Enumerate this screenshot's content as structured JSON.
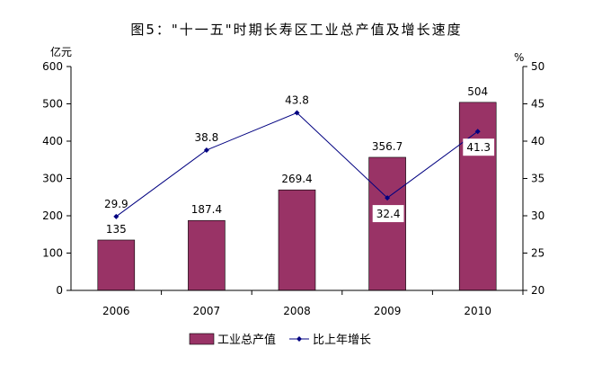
{
  "chart_data": {
    "type": "bar",
    "title": "图5：\"十一五\"时期长寿区工业总产值及增长速度",
    "categories": [
      "2006",
      "2007",
      "2008",
      "2009",
      "2010"
    ],
    "series": [
      {
        "name": "工业总产值",
        "type": "bar",
        "axis": "left",
        "values": [
          135,
          187.4,
          269.4,
          356.7,
          504
        ],
        "labels": [
          "135",
          "187.4",
          "269.4",
          "356.7",
          "504"
        ],
        "color": "#993366"
      },
      {
        "name": "比上年增长",
        "type": "line",
        "axis": "right",
        "values": [
          29.9,
          38.8,
          43.8,
          32.4,
          41.3
        ],
        "labels": [
          "29.9",
          "38.8",
          "43.8",
          "32.4",
          "41.3"
        ],
        "color": "#000080"
      }
    ],
    "left_axis": {
      "unit": "亿元",
      "ylim": [
        0,
        600
      ],
      "ticks": [
        "0",
        "100",
        "200",
        "300",
        "400",
        "500",
        "600"
      ]
    },
    "right_axis": {
      "unit": "%",
      "ylim": [
        20,
        50
      ],
      "ticks": [
        "20",
        "25",
        "30",
        "35",
        "40",
        "45",
        "50"
      ]
    },
    "grid": false,
    "legend_position": "bottom"
  }
}
